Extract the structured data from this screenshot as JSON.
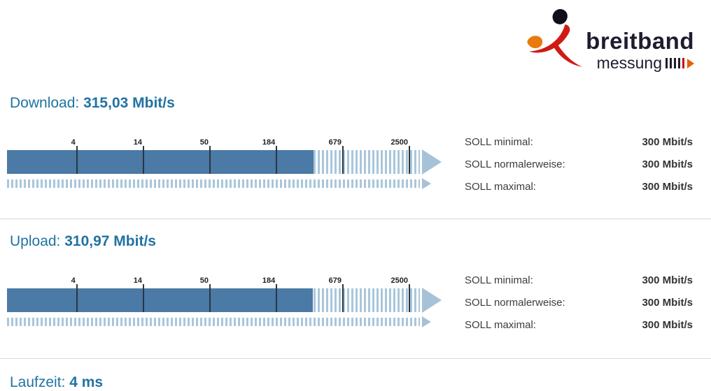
{
  "logo": {
    "title": "breitband",
    "subtitle": "messung"
  },
  "download": {
    "label": "Download:",
    "value": "315,03 Mbit/s",
    "fill_percent": 74.2,
    "ticks": [
      "4",
      "14",
      "50",
      "184",
      "679",
      "2500"
    ],
    "soll": {
      "minimal_label": "SOLL minimal:",
      "minimal_value": "300 Mbit/s",
      "normal_label": "SOLL normalerweise:",
      "normal_value": "300 Mbit/s",
      "maximal_label": "SOLL maximal:",
      "maximal_value": "300 Mbit/s"
    }
  },
  "upload": {
    "label": "Upload:",
    "value": "310,97 Mbit/s",
    "fill_percent": 74.0,
    "ticks": [
      "4",
      "14",
      "50",
      "184",
      "679",
      "2500"
    ],
    "soll": {
      "minimal_label": "SOLL minimal:",
      "minimal_value": "300 Mbit/s",
      "normal_label": "SOLL normalerweise:",
      "normal_value": "300 Mbit/s",
      "maximal_label": "SOLL maximal:",
      "maximal_value": "300 Mbit/s"
    }
  },
  "laufzeit": {
    "label": "Laufzeit:",
    "value": "4 ms"
  },
  "colors": {
    "heading_blue": "#2173a2",
    "bar_fill": "#4a7aa5",
    "bar_stripe": "#a9c6db",
    "arrow": "#a6c2d8",
    "logo_dark": "#1d1d2e",
    "logo_red": "#d11a12",
    "logo_orange": "#e87a0e"
  }
}
